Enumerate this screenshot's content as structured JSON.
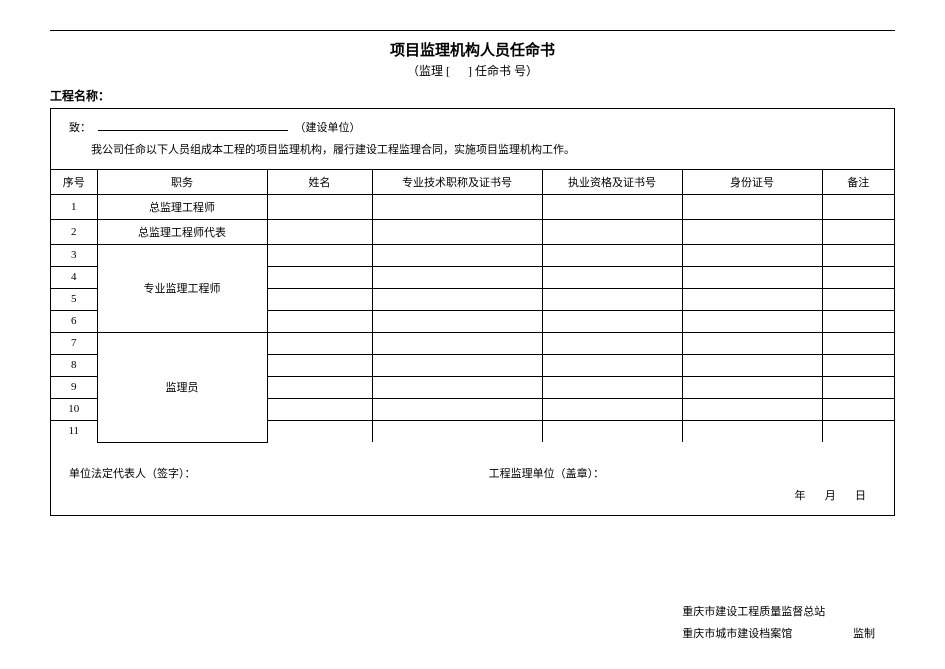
{
  "title": {
    "main": "项目监理机构人员任命书",
    "sub_before": "（监理 [",
    "sub_after": "] 任命书    号）"
  },
  "project_label": "工程名称：",
  "header_block": {
    "to_prefix": "致：",
    "to_suffix": "（建设单位）",
    "intro": "我公司任命以下人员组成本工程的项目监理机构，履行建设工程监理合同，实施项目监理机构工作。"
  },
  "table": {
    "columns": {
      "seq": "序号",
      "role": "职务",
      "name": "姓名",
      "cert1": "专业技术职称及证书号",
      "cert2": "执业资格及证书号",
      "id": "身份证号",
      "note": "备注"
    },
    "rows": [
      {
        "seq": "1",
        "role": "总监理工程师"
      },
      {
        "seq": "2",
        "role": "总监理工程师代表"
      },
      {
        "seq": "3",
        "role": "专业监理工程师"
      },
      {
        "seq": "4"
      },
      {
        "seq": "5"
      },
      {
        "seq": "6"
      },
      {
        "seq": "7",
        "role": "监理员"
      },
      {
        "seq": "8"
      },
      {
        "seq": "9"
      },
      {
        "seq": "10"
      },
      {
        "seq": "11"
      }
    ]
  },
  "footer": {
    "rep_label": "单位法定代表人（签字）：",
    "org_label": "工程监理单位（盖章）：",
    "year": "年",
    "month": "月",
    "day": "日"
  },
  "bottom": {
    "line1": "重庆市建设工程质量监督总站",
    "line2": "重庆市城市建设档案馆",
    "supervise": "监制"
  }
}
